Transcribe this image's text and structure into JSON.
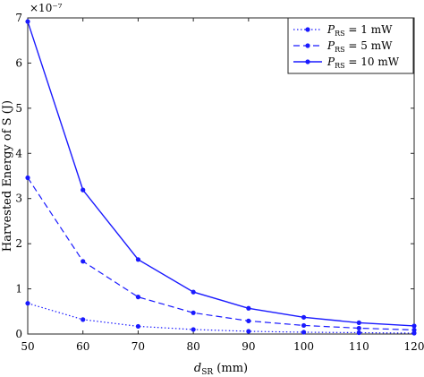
{
  "chart_data": {
    "type": "line",
    "x": [
      50,
      60,
      70,
      80,
      90,
      100,
      110,
      120
    ],
    "xlim": [
      50,
      120
    ],
    "ylim": [
      0,
      7
    ],
    "xticks": [
      "50",
      "60",
      "70",
      "80",
      "90",
      "100",
      "110",
      "120"
    ],
    "yticks": [
      "0",
      "1",
      "2",
      "3",
      "4",
      "5",
      "6",
      "7"
    ],
    "y_exponent_label": "×10⁻⁷",
    "xlabel": "d_SR (mm)",
    "ylabel": "Harvested Energy of S (J)",
    "grid": false,
    "legend_position": "top-right",
    "series": [
      {
        "name": "P_RS = 1 mW",
        "style": "dotted",
        "color": "#1a1aff",
        "values": [
          0.68,
          0.32,
          0.17,
          0.1,
          0.06,
          0.04,
          0.03,
          0.02
        ]
      },
      {
        "name": "P_RS = 5 mW",
        "style": "dashed",
        "color": "#1a1aff",
        "values": [
          3.46,
          1.61,
          0.82,
          0.47,
          0.29,
          0.19,
          0.13,
          0.09
        ]
      },
      {
        "name": "P_RS = 10 mW",
        "style": "solid",
        "color": "#1a1aff",
        "values": [
          6.92,
          3.19,
          1.65,
          0.93,
          0.57,
          0.37,
          0.25,
          0.18
        ]
      }
    ],
    "legend": {
      "entries": [
        {
          "prefix": "P",
          "sub": "RS",
          "suffix": " = 1 mW"
        },
        {
          "prefix": "P",
          "sub": "RS",
          "suffix": " = 5 mW"
        },
        {
          "prefix": "P",
          "sub": "RS",
          "suffix": " = 10 mW"
        }
      ]
    },
    "xlabel_parts": {
      "main": "d",
      "sub": "SR",
      "rest": " (mm)"
    }
  }
}
